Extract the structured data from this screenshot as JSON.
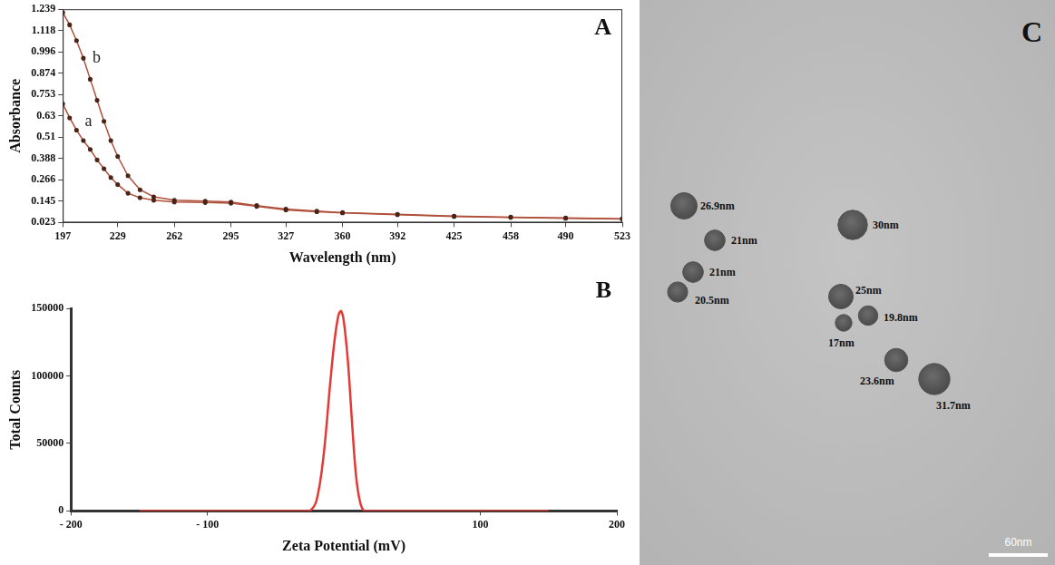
{
  "chart_data": [
    {
      "panel": "A",
      "type": "line",
      "x_label": "Wavelength (nm)",
      "y_label": "Absorbance",
      "x": [
        197,
        201,
        205,
        209,
        213,
        217,
        221,
        225,
        229,
        235,
        242,
        250,
        262,
        280,
        295,
        310,
        327,
        345,
        360,
        392,
        425,
        458,
        490,
        523
      ],
      "series": [
        {
          "name": "a",
          "color": "#b0503a",
          "marker": "circle",
          "values": [
            0.7,
            0.62,
            0.55,
            0.49,
            0.44,
            0.38,
            0.33,
            0.28,
            0.24,
            0.19,
            0.165,
            0.15,
            0.14,
            0.137,
            0.133,
            0.115,
            0.095,
            0.085,
            0.078,
            0.068,
            0.058,
            0.052,
            0.047,
            0.043
          ]
        },
        {
          "name": "b",
          "color": "#b0503a",
          "marker": "circle",
          "values": [
            1.22,
            1.15,
            1.06,
            0.96,
            0.84,
            0.72,
            0.6,
            0.49,
            0.4,
            0.29,
            0.21,
            0.17,
            0.15,
            0.145,
            0.14,
            0.12,
            0.1,
            0.088,
            0.08,
            0.07,
            0.06,
            0.054,
            0.049,
            0.045
          ]
        }
      ],
      "xlim": [
        197,
        523
      ],
      "xticks": [
        197,
        229,
        262,
        295,
        327,
        360,
        392,
        425,
        458,
        490,
        523
      ],
      "ylim": [
        0.023,
        1.239
      ],
      "yticks": [
        0.023,
        0.145,
        0.266,
        0.388,
        0.51,
        0.63,
        0.753,
        0.874,
        0.996,
        1.118,
        1.239
      ],
      "grid": false
    },
    {
      "panel": "B",
      "type": "line",
      "x_label": "Zeta Potential (mV)",
      "y_label": "Total Counts",
      "x": [
        -150,
        -30,
        -25,
        -20,
        -15,
        -10,
        -7,
        -4,
        -2,
        0,
        3,
        6,
        9,
        12,
        15,
        20,
        150
      ],
      "values": [
        0,
        0,
        0,
        8000,
        40000,
        95000,
        125000,
        145000,
        148000,
        140000,
        110000,
        65000,
        25000,
        6000,
        0,
        0,
        0
      ],
      "color": "#e53935",
      "xlim": [
        -200,
        200
      ],
      "xticks": [
        {
          "value": -200,
          "label": "- 200"
        },
        {
          "value": -100,
          "label": "- 100"
        },
        100,
        200
      ],
      "ylim": [
        0,
        150000
      ],
      "yticks": [
        0,
        50000,
        100000,
        150000
      ],
      "grid": false
    }
  ],
  "image": {
    "panel": "C",
    "particles": [
      {
        "diameter": 26.9,
        "label": "26.9nm"
      },
      {
        "diameter": 21,
        "label": "21nm"
      },
      {
        "diameter": 21,
        "label": "21nm"
      },
      {
        "diameter": 20.5,
        "label": "20.5nm"
      },
      {
        "diameter": 30,
        "label": "30nm"
      },
      {
        "diameter": 25,
        "label": "25nm"
      },
      {
        "diameter": 19.8,
        "label": "19.8nm"
      },
      {
        "diameter": 17,
        "label": "17nm"
      },
      {
        "diameter": 23.6,
        "label": "23.6nm"
      },
      {
        "diameter": 31.7,
        "label": "31.7nm"
      }
    ],
    "scale_bar": {
      "length": 60,
      "label": "60nm"
    }
  }
}
